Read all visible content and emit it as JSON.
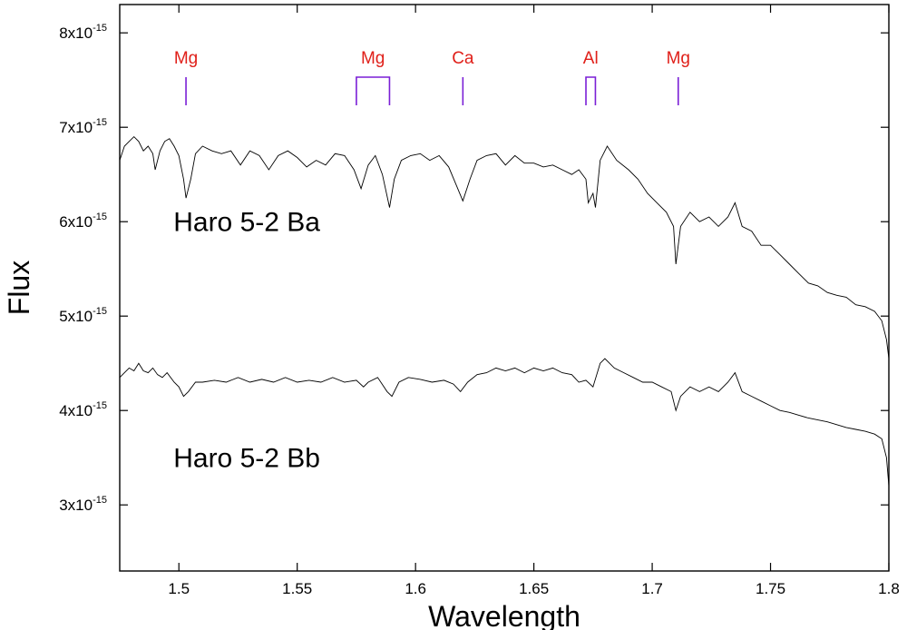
{
  "chart_data": {
    "type": "line",
    "title": "",
    "xlabel": "Wavelength",
    "ylabel": "Flux",
    "xlim": [
      1.475,
      1.8
    ],
    "ylim": [
      2.3e-15,
      8.3e-15
    ],
    "x_ticks": [
      {
        "value": 1.5,
        "label": "1.5"
      },
      {
        "value": 1.55,
        "label": "1.55"
      },
      {
        "value": 1.6,
        "label": "1.6"
      },
      {
        "value": 1.65,
        "label": "1.65"
      },
      {
        "value": 1.7,
        "label": "1.7"
      },
      {
        "value": 1.75,
        "label": "1.75"
      },
      {
        "value": 1.8,
        "label": "1.8"
      }
    ],
    "y_ticks": [
      {
        "value": 3e-15,
        "mantissa": "3x10",
        "exponent": "-15"
      },
      {
        "value": 4e-15,
        "mantissa": "4x10",
        "exponent": "-15"
      },
      {
        "value": 5e-15,
        "mantissa": "5x10",
        "exponent": "-15"
      },
      {
        "value": 6e-15,
        "mantissa": "6x10",
        "exponent": "-15"
      },
      {
        "value": 7e-15,
        "mantissa": "7x10",
        "exponent": "-15"
      },
      {
        "value": 8e-15,
        "mantissa": "8x10",
        "exponent": "-15"
      }
    ],
    "grid": false,
    "legend": "none",
    "line_color": "#000000",
    "series": [
      {
        "name": "Haro 5-2 Ba",
        "label_at": {
          "x": 1.5,
          "y": 5.9e-15
        },
        "points": [
          [
            1.475,
            6.65e-15
          ],
          [
            1.477,
            6.8e-15
          ],
          [
            1.479,
            6.85e-15
          ],
          [
            1.481,
            6.9e-15
          ],
          [
            1.483,
            6.85e-15
          ],
          [
            1.485,
            6.75e-15
          ],
          [
            1.487,
            6.8e-15
          ],
          [
            1.489,
            6.72e-15
          ],
          [
            1.49,
            6.55e-15
          ],
          [
            1.492,
            6.75e-15
          ],
          [
            1.494,
            6.85e-15
          ],
          [
            1.496,
            6.88e-15
          ],
          [
            1.498,
            6.8e-15
          ],
          [
            1.5,
            6.7e-15
          ],
          [
            1.502,
            6.45e-15
          ],
          [
            1.503,
            6.25e-15
          ],
          [
            1.505,
            6.45e-15
          ],
          [
            1.507,
            6.72e-15
          ],
          [
            1.51,
            6.8e-15
          ],
          [
            1.514,
            6.75e-15
          ],
          [
            1.518,
            6.72e-15
          ],
          [
            1.522,
            6.75e-15
          ],
          [
            1.526,
            6.6e-15
          ],
          [
            1.53,
            6.75e-15
          ],
          [
            1.534,
            6.7e-15
          ],
          [
            1.538,
            6.55e-15
          ],
          [
            1.542,
            6.7e-15
          ],
          [
            1.546,
            6.75e-15
          ],
          [
            1.55,
            6.68e-15
          ],
          [
            1.554,
            6.58e-15
          ],
          [
            1.558,
            6.65e-15
          ],
          [
            1.562,
            6.6e-15
          ],
          [
            1.566,
            6.72e-15
          ],
          [
            1.57,
            6.7e-15
          ],
          [
            1.574,
            6.55e-15
          ],
          [
            1.577,
            6.35e-15
          ],
          [
            1.58,
            6.6e-15
          ],
          [
            1.583,
            6.7e-15
          ],
          [
            1.586,
            6.5e-15
          ],
          [
            1.589,
            6.15e-15
          ],
          [
            1.591,
            6.45e-15
          ],
          [
            1.594,
            6.65e-15
          ],
          [
            1.598,
            6.7e-15
          ],
          [
            1.602,
            6.72e-15
          ],
          [
            1.606,
            6.65e-15
          ],
          [
            1.61,
            6.7e-15
          ],
          [
            1.614,
            6.58e-15
          ],
          [
            1.617,
            6.4e-15
          ],
          [
            1.62,
            6.22e-15
          ],
          [
            1.623,
            6.45e-15
          ],
          [
            1.626,
            6.65e-15
          ],
          [
            1.63,
            6.7e-15
          ],
          [
            1.634,
            6.72e-15
          ],
          [
            1.638,
            6.6e-15
          ],
          [
            1.642,
            6.7e-15
          ],
          [
            1.646,
            6.62e-15
          ],
          [
            1.65,
            6.62e-15
          ],
          [
            1.654,
            6.58e-15
          ],
          [
            1.658,
            6.6e-15
          ],
          [
            1.662,
            6.55e-15
          ],
          [
            1.666,
            6.5e-15
          ],
          [
            1.669,
            6.55e-15
          ],
          [
            1.672,
            6.45e-15
          ],
          [
            1.673,
            6.2e-15
          ],
          [
            1.675,
            6.3e-15
          ],
          [
            1.676,
            6.15e-15
          ],
          [
            1.678,
            6.65e-15
          ],
          [
            1.681,
            6.8e-15
          ],
          [
            1.685,
            6.65e-15
          ],
          [
            1.69,
            6.55e-15
          ],
          [
            1.694,
            6.45e-15
          ],
          [
            1.698,
            6.3e-15
          ],
          [
            1.702,
            6.2e-15
          ],
          [
            1.706,
            6.1e-15
          ],
          [
            1.709,
            5.95e-15
          ],
          [
            1.71,
            5.55e-15
          ],
          [
            1.712,
            5.95e-15
          ],
          [
            1.716,
            6.1e-15
          ],
          [
            1.72,
            6e-15
          ],
          [
            1.724,
            6.05e-15
          ],
          [
            1.728,
            5.95e-15
          ],
          [
            1.732,
            6.05e-15
          ],
          [
            1.735,
            6.2e-15
          ],
          [
            1.738,
            5.95e-15
          ],
          [
            1.742,
            5.9e-15
          ],
          [
            1.746,
            5.75e-15
          ],
          [
            1.75,
            5.75e-15
          ],
          [
            1.754,
            5.65e-15
          ],
          [
            1.758,
            5.55e-15
          ],
          [
            1.762,
            5.45e-15
          ],
          [
            1.766,
            5.35e-15
          ],
          [
            1.77,
            5.32e-15
          ],
          [
            1.774,
            5.25e-15
          ],
          [
            1.778,
            5.22e-15
          ],
          [
            1.782,
            5.2e-15
          ],
          [
            1.786,
            5.12e-15
          ],
          [
            1.79,
            5.1e-15
          ],
          [
            1.794,
            5.05e-15
          ],
          [
            1.797,
            4.95e-15
          ],
          [
            1.799,
            4.75e-15
          ],
          [
            1.8,
            4.55e-15
          ]
        ]
      },
      {
        "name": "Haro 5-2 Bb",
        "label_at": {
          "x": 1.5,
          "y": 3.4e-15
        },
        "points": [
          [
            1.475,
            4.35e-15
          ],
          [
            1.477,
            4.4e-15
          ],
          [
            1.479,
            4.45e-15
          ],
          [
            1.481,
            4.42e-15
          ],
          [
            1.483,
            4.5e-15
          ],
          [
            1.485,
            4.42e-15
          ],
          [
            1.487,
            4.4e-15
          ],
          [
            1.489,
            4.45e-15
          ],
          [
            1.491,
            4.38e-15
          ],
          [
            1.493,
            4.35e-15
          ],
          [
            1.495,
            4.4e-15
          ],
          [
            1.498,
            4.3e-15
          ],
          [
            1.5,
            4.25e-15
          ],
          [
            1.502,
            4.15e-15
          ],
          [
            1.504,
            4.2e-15
          ],
          [
            1.507,
            4.3e-15
          ],
          [
            1.51,
            4.3e-15
          ],
          [
            1.515,
            4.32e-15
          ],
          [
            1.52,
            4.3e-15
          ],
          [
            1.525,
            4.35e-15
          ],
          [
            1.53,
            4.3e-15
          ],
          [
            1.535,
            4.33e-15
          ],
          [
            1.54,
            4.3e-15
          ],
          [
            1.545,
            4.35e-15
          ],
          [
            1.55,
            4.3e-15
          ],
          [
            1.555,
            4.32e-15
          ],
          [
            1.56,
            4.3e-15
          ],
          [
            1.565,
            4.35e-15
          ],
          [
            1.57,
            4.3e-15
          ],
          [
            1.575,
            4.32e-15
          ],
          [
            1.578,
            4.25e-15
          ],
          [
            1.58,
            4.3e-15
          ],
          [
            1.584,
            4.35e-15
          ],
          [
            1.588,
            4.2e-15
          ],
          [
            1.59,
            4.15e-15
          ],
          [
            1.593,
            4.3e-15
          ],
          [
            1.597,
            4.35e-15
          ],
          [
            1.602,
            4.33e-15
          ],
          [
            1.607,
            4.3e-15
          ],
          [
            1.612,
            4.32e-15
          ],
          [
            1.616,
            4.28e-15
          ],
          [
            1.619,
            4.2e-15
          ],
          [
            1.622,
            4.3e-15
          ],
          [
            1.626,
            4.38e-15
          ],
          [
            1.63,
            4.4e-15
          ],
          [
            1.634,
            4.45e-15
          ],
          [
            1.638,
            4.42e-15
          ],
          [
            1.642,
            4.45e-15
          ],
          [
            1.646,
            4.4e-15
          ],
          [
            1.65,
            4.45e-15
          ],
          [
            1.654,
            4.42e-15
          ],
          [
            1.658,
            4.45e-15
          ],
          [
            1.662,
            4.4e-15
          ],
          [
            1.666,
            4.38e-15
          ],
          [
            1.669,
            4.3e-15
          ],
          [
            1.672,
            4.32e-15
          ],
          [
            1.675,
            4.25e-15
          ],
          [
            1.678,
            4.5e-15
          ],
          [
            1.68,
            4.55e-15
          ],
          [
            1.684,
            4.45e-15
          ],
          [
            1.688,
            4.4e-15
          ],
          [
            1.692,
            4.35e-15
          ],
          [
            1.696,
            4.3e-15
          ],
          [
            1.7,
            4.3e-15
          ],
          [
            1.704,
            4.25e-15
          ],
          [
            1.708,
            4.2e-15
          ],
          [
            1.71,
            4e-15
          ],
          [
            1.712,
            4.15e-15
          ],
          [
            1.716,
            4.25e-15
          ],
          [
            1.72,
            4.2e-15
          ],
          [
            1.724,
            4.25e-15
          ],
          [
            1.728,
            4.2e-15
          ],
          [
            1.732,
            4.3e-15
          ],
          [
            1.735,
            4.4e-15
          ],
          [
            1.738,
            4.2e-15
          ],
          [
            1.742,
            4.15e-15
          ],
          [
            1.746,
            4.1e-15
          ],
          [
            1.75,
            4.05e-15
          ],
          [
            1.754,
            4e-15
          ],
          [
            1.758,
            3.98e-15
          ],
          [
            1.762,
            3.95e-15
          ],
          [
            1.766,
            3.92e-15
          ],
          [
            1.77,
            3.9e-15
          ],
          [
            1.774,
            3.88e-15
          ],
          [
            1.778,
            3.85e-15
          ],
          [
            1.782,
            3.82e-15
          ],
          [
            1.786,
            3.8e-15
          ],
          [
            1.79,
            3.78e-15
          ],
          [
            1.794,
            3.75e-15
          ],
          [
            1.797,
            3.7e-15
          ],
          [
            1.799,
            3.5e-15
          ],
          [
            1.8,
            3.2e-15
          ]
        ]
      }
    ],
    "annotations": [
      {
        "label": "Mg",
        "lines": [
          1.503
        ]
      },
      {
        "label": "Mg",
        "lines": [
          1.575,
          1.589
        ]
      },
      {
        "label": "Ca",
        "lines": [
          1.62
        ]
      },
      {
        "label": "Al",
        "lines": [
          1.672,
          1.676
        ]
      },
      {
        "label": "Mg",
        "lines": [
          1.711
        ]
      }
    ],
    "annotation_color": "#e0201a",
    "marker_color": "#7a1fd6"
  }
}
